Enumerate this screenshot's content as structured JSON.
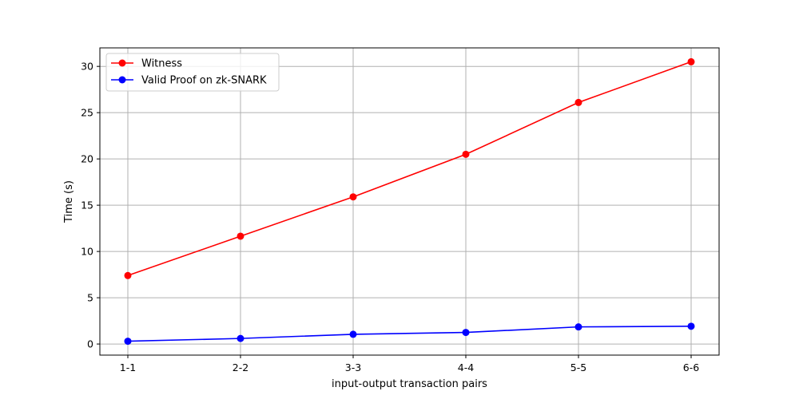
{
  "chart_data": {
    "type": "line",
    "title": "",
    "xlabel": "input-output transaction pairs",
    "ylabel": "Time (s)",
    "categories": [
      "1-1",
      "2-2",
      "3-3",
      "4-4",
      "5-5",
      "6-6"
    ],
    "ylim": [
      -1.2,
      32
    ],
    "yticks": [
      0,
      5,
      10,
      15,
      20,
      25,
      30
    ],
    "grid": true,
    "legend_position": "upper-left",
    "series": [
      {
        "name": "Witness",
        "color": "#ff0000",
        "values": [
          7.4,
          11.65,
          15.9,
          20.5,
          26.1,
          30.5
        ]
      },
      {
        "name": "Valid Proof on zk-SNARK",
        "color": "#0000ff",
        "values": [
          0.3,
          0.6,
          1.05,
          1.25,
          1.85,
          1.92
        ]
      }
    ]
  }
}
